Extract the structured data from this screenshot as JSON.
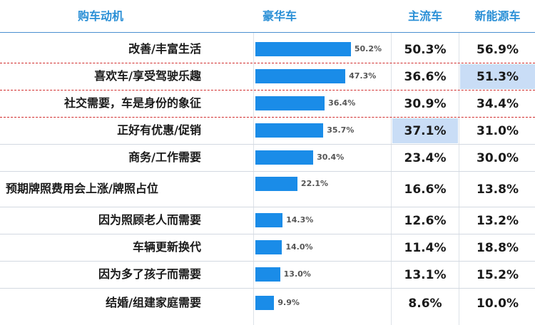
{
  "headers": {
    "motivation": "购车动机",
    "luxury": "豪华车",
    "mainstream": "主流车",
    "nev": "新能源车"
  },
  "chart_data": {
    "type": "table",
    "columns": [
      "购车动机",
      "豪华车",
      "主流车",
      "新能源车"
    ],
    "luxury_bar_xlim": [
      0,
      60
    ],
    "highlight_color": "#c9ddf6",
    "bar_color": "#1a8ce8",
    "rows": [
      {
        "motivation": "改善/丰富生活",
        "luxury": 50.2,
        "luxury_label": "50.2%",
        "mainstream": "50.3%",
        "nev": "56.9%",
        "highlight": ""
      },
      {
        "motivation": "喜欢车/享受驾驶乐趣",
        "luxury": 47.3,
        "luxury_label": "47.3%",
        "mainstream": "36.6%",
        "nev": "51.3%",
        "highlight": "nev"
      },
      {
        "motivation": "社交需要，车是身份的象征",
        "luxury": 36.4,
        "luxury_label": "36.4%",
        "mainstream": "30.9%",
        "nev": "34.4%",
        "highlight": ""
      },
      {
        "motivation": "正好有优惠/促销",
        "luxury": 35.7,
        "luxury_label": "35.7%",
        "mainstream": "37.1%",
        "nev": "31.0%",
        "highlight": "mainstream"
      },
      {
        "motivation": "商务/工作需要",
        "luxury": 30.4,
        "luxury_label": "30.4%",
        "mainstream": "23.4%",
        "nev": "30.0%",
        "highlight": ""
      },
      {
        "motivation": "预期牌照费用会上涨/牌照占位",
        "luxury": 22.1,
        "luxury_label": "22.1%",
        "mainstream": "16.6%",
        "nev": "13.8%",
        "highlight": ""
      },
      {
        "motivation": "因为照顾老人而需要",
        "luxury": 14.3,
        "luxury_label": "14.3%",
        "mainstream": "12.6%",
        "nev": "13.2%",
        "highlight": ""
      },
      {
        "motivation": "车辆更新换代",
        "luxury": 14.0,
        "luxury_label": "14.0%",
        "mainstream": "11.4%",
        "nev": "18.8%",
        "highlight": ""
      },
      {
        "motivation": "因为多了孩子而需要",
        "luxury": 13.0,
        "luxury_label": "13.0%",
        "mainstream": "13.1%",
        "nev": "15.2%",
        "highlight": ""
      },
      {
        "motivation": "结婚/组建家庭需要",
        "luxury": 9.9,
        "luxury_label": "9.9%",
        "mainstream": "8.6%",
        "nev": "10.0%",
        "highlight": ""
      }
    ]
  }
}
